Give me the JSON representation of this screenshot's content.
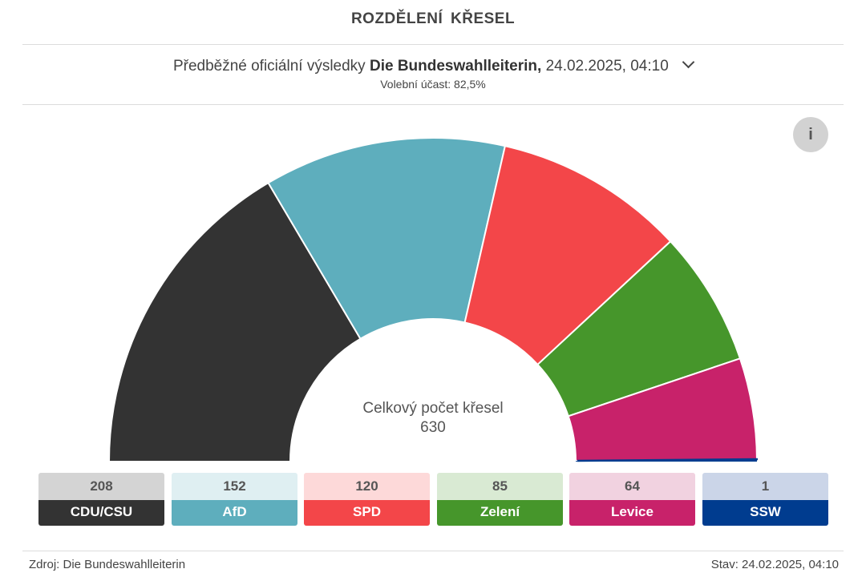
{
  "header": {
    "title": "ROZDĚLENÍ KŘESEL",
    "subtitle_prefix": "Předběžné oficiální výsledky",
    "subtitle_source": "Die Bundeswahlleiterin,",
    "subtitle_datetime": "24.02.2025, 04:10",
    "turnout": "Volební účast: 82,5%",
    "info_label": "i"
  },
  "chart_data": {
    "type": "pie",
    "variant": "parliament-semicircle",
    "total_label": "Celkový počet křesel",
    "total": "630",
    "categories": [
      "CDU/CSU",
      "AfD",
      "SPD",
      "Zelení",
      "Levice",
      "SSW"
    ],
    "values": [
      208,
      152,
      120,
      85,
      64,
      1
    ],
    "series": [
      {
        "name": "CDU/CSU",
        "value": 208,
        "color": "#333333",
        "light": "#d4d4d4"
      },
      {
        "name": "AfD",
        "value": 152,
        "color": "#5eaebd",
        "light": "#dfeff2"
      },
      {
        "name": "SPD",
        "value": 120,
        "color": "#f34649",
        "light": "#fdd9d9"
      },
      {
        "name": "Zelení",
        "value": 85,
        "color": "#46962b",
        "light": "#d9ead3"
      },
      {
        "name": "Levice",
        "value": 64,
        "color": "#c8226a",
        "light": "#f1d2e0"
      },
      {
        "name": "SSW",
        "value": 1,
        "color": "#003c8f",
        "light": "#cbd5e8"
      }
    ]
  },
  "footer": {
    "source": "Zdroj: Die Bundeswahlleiterin",
    "status": "Stav: 24.02.2025, 04:10"
  }
}
